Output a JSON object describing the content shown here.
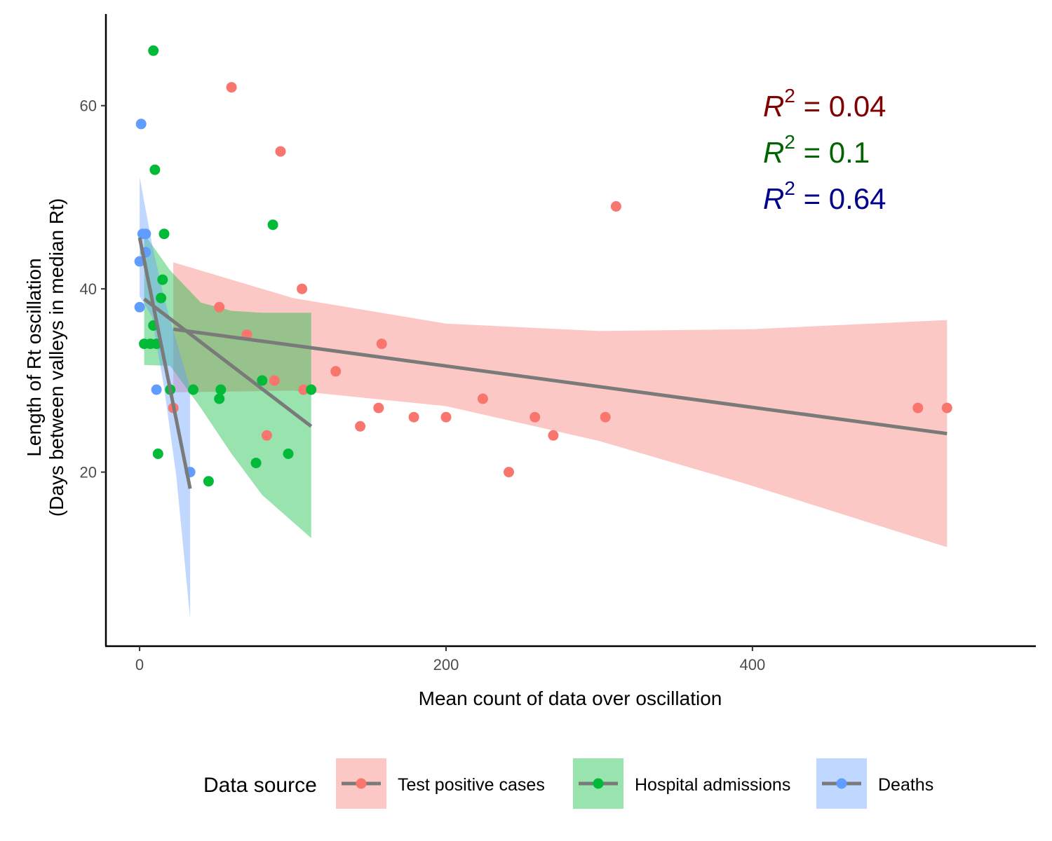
{
  "chart_data": {
    "type": "scatter",
    "title": "",
    "xlabel": "Mean count of data over oscillation",
    "ylabel_line1": "Length of Rt oscillation",
    "ylabel_line2": "(Days between valleys in median Rt)",
    "xlim": [
      -22,
      585
    ],
    "ylim": [
      1,
      70
    ],
    "x_ticks": [
      0,
      200,
      400
    ],
    "y_ticks": [
      20,
      40,
      60
    ],
    "x_tick_labels": [
      "0",
      "200",
      "400"
    ],
    "y_tick_labels": [
      "20",
      "40",
      "60"
    ],
    "grid": false,
    "legend": {
      "title": "Data source",
      "placement": "bottom",
      "entries": [
        "Test positive cases",
        "Hospital admissions",
        "Deaths"
      ]
    },
    "annotations": [
      {
        "prefix": "R",
        "sup": "2",
        "eq": " = ",
        "value": "0.04",
        "color": "#800000"
      },
      {
        "prefix": "R",
        "sup": "2",
        "eq": " = ",
        "value": "0.1",
        "color": "#006400"
      },
      {
        "prefix": "R",
        "sup": "2",
        "eq": " = ",
        "value": "0.64",
        "color": "#00008b"
      }
    ],
    "series": [
      {
        "name": "Test positive cases",
        "color": "#F8766D",
        "ribbon_color": "#F8766D",
        "points": [
          [
            60,
            62
          ],
          [
            92,
            55
          ],
          [
            311,
            49
          ],
          [
            106,
            40
          ],
          [
            52,
            38
          ],
          [
            70,
            35
          ],
          [
            158,
            34
          ],
          [
            128,
            31
          ],
          [
            88,
            30
          ],
          [
            107,
            29
          ],
          [
            22,
            27
          ],
          [
            156,
            27
          ],
          [
            224,
            28
          ],
          [
            144,
            25
          ],
          [
            179,
            26
          ],
          [
            200,
            26
          ],
          [
            258,
            26
          ],
          [
            304,
            26
          ],
          [
            83,
            24
          ],
          [
            270,
            24
          ],
          [
            241,
            20
          ],
          [
            508,
            27
          ],
          [
            527,
            27
          ]
        ],
        "fit": [
          [
            22,
            35.6
          ],
          [
            527,
            24.2
          ]
        ],
        "ribbon_upper": [
          [
            22,
            42.9
          ],
          [
            100,
            39
          ],
          [
            200,
            36.2
          ],
          [
            300,
            35.4
          ],
          [
            400,
            35.6
          ],
          [
            527,
            36.6
          ]
        ],
        "ribbon_lower": [
          [
            22,
            28.7
          ],
          [
            100,
            28.9
          ],
          [
            200,
            27.2
          ],
          [
            300,
            23.4
          ],
          [
            400,
            18.5
          ],
          [
            527,
            11.8
          ]
        ]
      },
      {
        "name": "Hospital admissions",
        "color": "#00BA38",
        "ribbon_color": "#00BA38",
        "points": [
          [
            9,
            66
          ],
          [
            10,
            53
          ],
          [
            87,
            47
          ],
          [
            16,
            46
          ],
          [
            15,
            41
          ],
          [
            14,
            39
          ],
          [
            9,
            36
          ],
          [
            3,
            34
          ],
          [
            7,
            34
          ],
          [
            11,
            34
          ],
          [
            20,
            29
          ],
          [
            35,
            29
          ],
          [
            53,
            29
          ],
          [
            80,
            30
          ],
          [
            112,
            29
          ],
          [
            52,
            28
          ],
          [
            12,
            22
          ],
          [
            97,
            22
          ],
          [
            76,
            21
          ],
          [
            45,
            19
          ]
        ],
        "fit": [
          [
            3,
            38.9
          ],
          [
            112,
            25
          ]
        ],
        "ribbon_upper": [
          [
            3,
            46
          ],
          [
            20,
            42
          ],
          [
            40,
            38.5
          ],
          [
            60,
            37.6
          ],
          [
            80,
            37.4
          ],
          [
            112,
            37.4
          ]
        ],
        "ribbon_lower": [
          [
            3,
            31.7
          ],
          [
            20,
            31.6
          ],
          [
            40,
            27
          ],
          [
            60,
            22
          ],
          [
            80,
            17.5
          ],
          [
            112,
            12.8
          ]
        ]
      },
      {
        "name": "Deaths",
        "color": "#619CFF",
        "ribbon_color": "#619CFF",
        "points": [
          [
            1,
            58
          ],
          [
            2,
            46
          ],
          [
            4,
            46
          ],
          [
            4,
            44
          ],
          [
            0,
            43
          ],
          [
            0,
            38
          ],
          [
            11,
            29
          ],
          [
            33,
            20
          ]
        ],
        "fit": [
          [
            0,
            45.6
          ],
          [
            33,
            18.2
          ]
        ],
        "ribbon_upper": [
          [
            0,
            52.2
          ],
          [
            8,
            45
          ],
          [
            16,
            39
          ],
          [
            24,
            34.3
          ],
          [
            33,
            29.2
          ]
        ],
        "ribbon_lower": [
          [
            0,
            39.2
          ],
          [
            8,
            37
          ],
          [
            16,
            29.2
          ],
          [
            24,
            19.5
          ],
          [
            33,
            4
          ]
        ]
      }
    ]
  }
}
